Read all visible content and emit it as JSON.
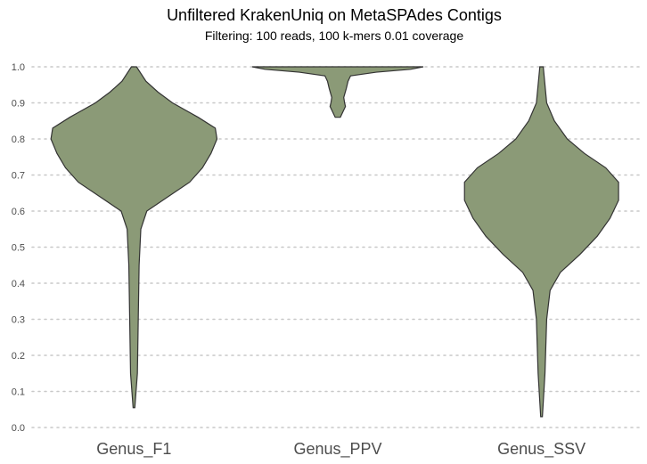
{
  "chart_data": {
    "type": "violin",
    "title": "Unfiltered KrakenUniq on MetaSPAdes Contigs",
    "subtitle": "Filtering: 100 reads, 100 k-mers 0.01 coverage",
    "categories": [
      "Genus_F1",
      "Genus_PPV",
      "Genus_SSV"
    ],
    "ylim": [
      0,
      1
    ],
    "yticks": [
      "0.0",
      "0.1",
      "0.2",
      "0.3",
      "0.4",
      "0.5",
      "0.6",
      "0.7",
      "0.8",
      "0.9",
      "1.0"
    ],
    "grid": true,
    "fill_color": "#8b9a77",
    "outline_color": "#333333",
    "series": [
      {
        "category": "Genus_F1",
        "min": 0.055,
        "max": 1.0,
        "density": [
          [
            0.055,
            0.01
          ],
          [
            0.15,
            0.04
          ],
          [
            0.3,
            0.05
          ],
          [
            0.45,
            0.06
          ],
          [
            0.55,
            0.08
          ],
          [
            0.6,
            0.15
          ],
          [
            0.64,
            0.4
          ],
          [
            0.68,
            0.65
          ],
          [
            0.72,
            0.8
          ],
          [
            0.76,
            0.9
          ],
          [
            0.8,
            0.97
          ],
          [
            0.83,
            0.95
          ],
          [
            0.86,
            0.75
          ],
          [
            0.9,
            0.45
          ],
          [
            0.93,
            0.28
          ],
          [
            0.96,
            0.14
          ],
          [
            1.0,
            0.03
          ]
        ]
      },
      {
        "category": "Genus_PPV",
        "min": 0.86,
        "max": 1.0,
        "density": [
          [
            0.86,
            0.03
          ],
          [
            0.875,
            0.06
          ],
          [
            0.89,
            0.09
          ],
          [
            0.9,
            0.08
          ],
          [
            0.915,
            0.07
          ],
          [
            0.94,
            0.1
          ],
          [
            0.96,
            0.12
          ],
          [
            0.975,
            0.15
          ],
          [
            0.985,
            0.45
          ],
          [
            0.993,
            0.85
          ],
          [
            1.0,
            1.0
          ]
        ]
      },
      {
        "category": "Genus_SSV",
        "min": 0.03,
        "max": 1.0,
        "density": [
          [
            0.03,
            0.01
          ],
          [
            0.15,
            0.04
          ],
          [
            0.3,
            0.06
          ],
          [
            0.38,
            0.1
          ],
          [
            0.43,
            0.22
          ],
          [
            0.48,
            0.45
          ],
          [
            0.53,
            0.65
          ],
          [
            0.58,
            0.8
          ],
          [
            0.63,
            0.9
          ],
          [
            0.68,
            0.9
          ],
          [
            0.72,
            0.75
          ],
          [
            0.76,
            0.5
          ],
          [
            0.8,
            0.3
          ],
          [
            0.85,
            0.15
          ],
          [
            0.9,
            0.06
          ],
          [
            1.0,
            0.02
          ]
        ]
      }
    ]
  }
}
